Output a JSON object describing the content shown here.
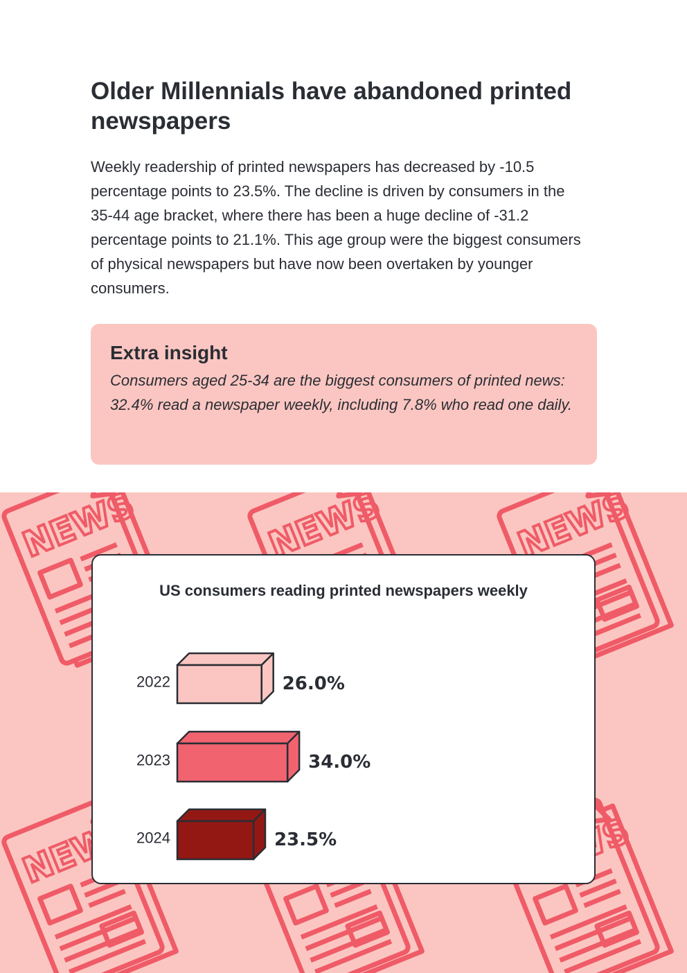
{
  "article": {
    "title": "Older Millennials have abandoned printed newspapers",
    "body": "Weekly readership of printed newspapers has decreased by -10.5 percentage points to 23.5%. The decline is driven by consumers in the 35-44 age bracket, where there has been a huge decline of -31.2 percentage points to 21.1%. This age group were the biggest consumers of physical newspapers but have now been overtaken by younger consumers."
  },
  "insight": {
    "title": "Extra insight",
    "text": "Consumers aged 25-34 are the biggest consumers of printed news: 32.4% read a newspaper weekly, including 7.8% who read one daily."
  },
  "background": {
    "icon": "newspaper-icon",
    "icon_label": "NEWS",
    "color": "#ef5b67"
  },
  "chart_data": {
    "type": "bar",
    "orientation": "horizontal",
    "title": "US consumers reading printed newspapers weekly",
    "categories": [
      "2022",
      "2023",
      "2024"
    ],
    "values": [
      26.0,
      34.0,
      23.5
    ],
    "labels": [
      "26.0%",
      "34.0%",
      "23.5%"
    ],
    "colors": [
      "#fbc6c1",
      "#f26370",
      "#931814"
    ],
    "xlabel": "",
    "ylabel": "",
    "grid": false,
    "legend": "none"
  }
}
